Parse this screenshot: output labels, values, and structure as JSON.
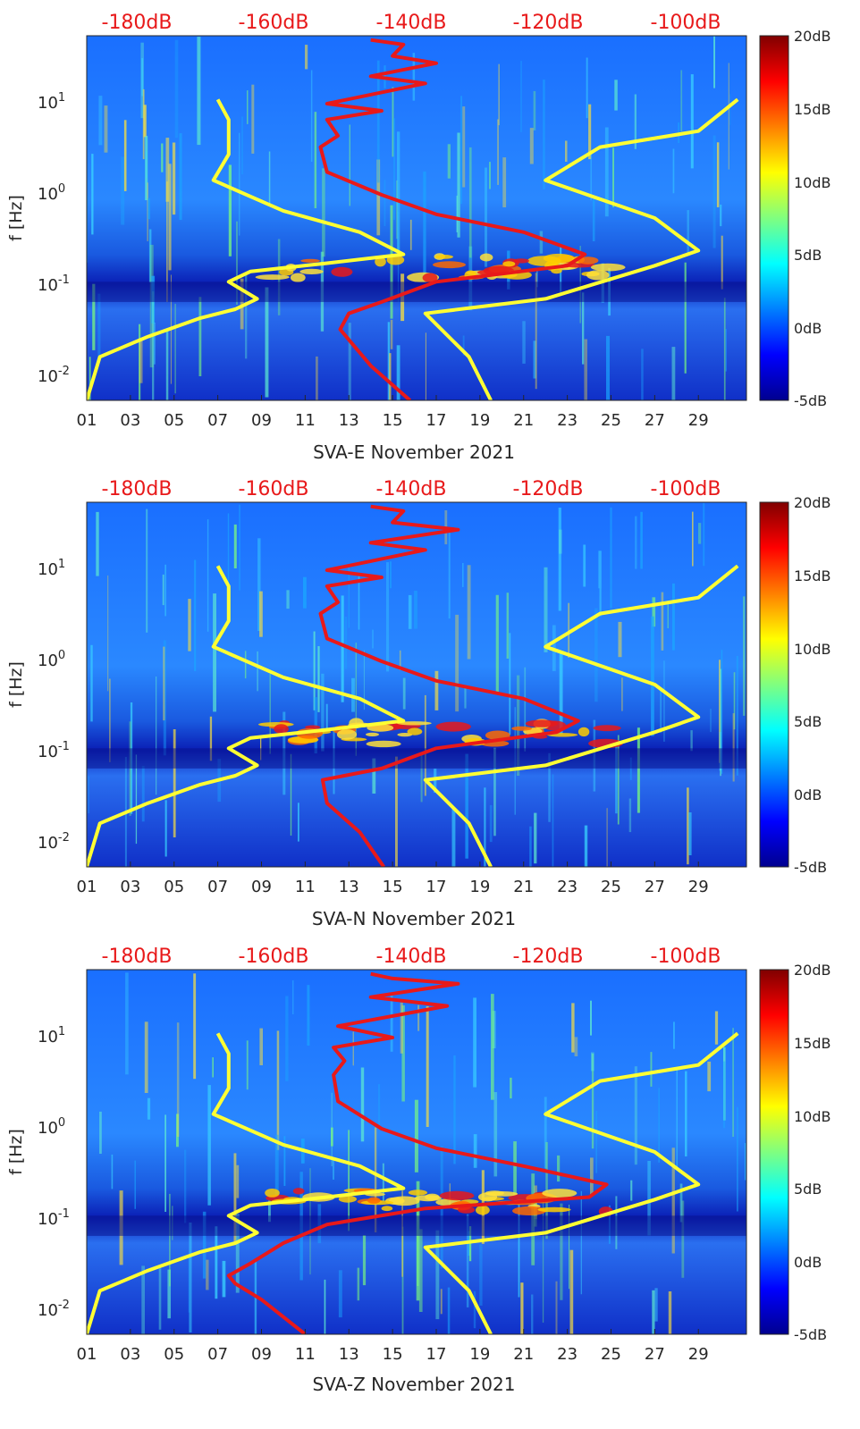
{
  "chart_data": [
    {
      "type": "heatmap",
      "xlabel": "SVA-E November 2021",
      "ylabel": "f [Hz]",
      "x_ticks": [
        "01",
        "03",
        "05",
        "07",
        "09",
        "11",
        "13",
        "15",
        "17",
        "19",
        "21",
        "23",
        "25",
        "27",
        "29"
      ],
      "y_ticks": [
        "10^-2",
        "10^-1",
        "10^0",
        "10^1"
      ],
      "y_scale": "log",
      "ylim": [
        0.005,
        50
      ],
      "top_labels": [
        "-180dB",
        "-160dB",
        "-140dB",
        "-120dB",
        "-100dB"
      ],
      "colorbar_ticks": [
        "20dB",
        "15dB",
        "10dB",
        "5dB",
        "0dB",
        "-5dB"
      ],
      "colorbar_range": [
        -5,
        20
      ],
      "colormap": "jet",
      "series": [
        {
          "color": "#ffff33",
          "x": [
            1.0,
            1.6,
            3.8,
            6.2,
            7.8,
            8.8,
            7.5,
            8.5,
            12.0,
            15.5,
            13.5,
            10.0,
            6.8,
            7.5,
            7.5,
            7.0
          ],
          "y": [
            0.005,
            0.015,
            0.025,
            0.04,
            0.05,
            0.065,
            0.1,
            0.13,
            0.16,
            0.2,
            0.35,
            0.6,
            1.3,
            2.5,
            6,
            10
          ]
        },
        {
          "color": "#e8191a",
          "x": [
            15.8,
            14.0,
            12.6,
            13.0,
            14.5,
            17.0,
            23.0,
            23.8,
            21.0,
            17.0,
            14.5,
            12.0,
            11.7,
            12.5,
            12.0,
            14.5,
            12.0,
            16.5,
            14.0,
            17.0,
            15.0,
            15.5,
            14.0
          ],
          "y": [
            0.005,
            0.012,
            0.03,
            0.045,
            0.06,
            0.1,
            0.15,
            0.2,
            0.35,
            0.55,
            0.9,
            1.6,
            3,
            4,
            6,
            7.5,
            9,
            15,
            18,
            25,
            30,
            40,
            45
          ]
        },
        {
          "color": "#ffff33",
          "x": [
            19.5,
            18.5,
            16.5,
            22.0,
            27.0,
            29.0,
            27.0,
            22.0,
            24.5,
            29.0,
            30.8
          ],
          "y": [
            0.005,
            0.015,
            0.045,
            0.065,
            0.15,
            0.22,
            0.5,
            1.3,
            3.0,
            4.5,
            10
          ]
        }
      ]
    },
    {
      "type": "heatmap",
      "xlabel": "SVA-N November 2021",
      "ylabel": "f [Hz]",
      "x_ticks": [
        "01",
        "03",
        "05",
        "07",
        "09",
        "11",
        "13",
        "15",
        "17",
        "19",
        "21",
        "23",
        "25",
        "27",
        "29"
      ],
      "y_ticks": [
        "10^-2",
        "10^-1",
        "10^0",
        "10^1"
      ],
      "y_scale": "log",
      "ylim": [
        0.005,
        50
      ],
      "top_labels": [
        "-180dB",
        "-160dB",
        "-140dB",
        "-120dB",
        "-100dB"
      ],
      "colorbar_ticks": [
        "20dB",
        "15dB",
        "10dB",
        "5dB",
        "0dB",
        "-5dB"
      ],
      "colorbar_range": [
        -5,
        20
      ],
      "colormap": "jet",
      "series": [
        {
          "color": "#ffff33",
          "x": [
            1.0,
            1.6,
            3.8,
            6.2,
            7.8,
            8.8,
            7.5,
            8.5,
            12.0,
            15.5,
            13.5,
            10.0,
            6.8,
            7.5,
            7.5,
            7.0
          ],
          "y": [
            0.005,
            0.015,
            0.025,
            0.04,
            0.05,
            0.065,
            0.1,
            0.13,
            0.16,
            0.2,
            0.35,
            0.6,
            1.3,
            2.5,
            6,
            10
          ]
        },
        {
          "color": "#e8191a",
          "x": [
            14.6,
            13.5,
            12.0,
            11.8,
            14.5,
            17.0,
            22.5,
            23.5,
            21.0,
            17.0,
            14.5,
            12.0,
            11.7,
            12.5,
            12.0,
            14.5,
            12.0,
            16.5,
            14.0,
            18.0,
            15.0,
            15.5,
            14.0
          ],
          "y": [
            0.005,
            0.012,
            0.025,
            0.045,
            0.06,
            0.1,
            0.15,
            0.2,
            0.35,
            0.55,
            0.9,
            1.6,
            3,
            4,
            6,
            7.5,
            9,
            15,
            18,
            25,
            30,
            40,
            45
          ]
        },
        {
          "color": "#ffff33",
          "x": [
            19.5,
            18.5,
            16.5,
            22.0,
            27.0,
            29.0,
            27.0,
            22.0,
            24.5,
            29.0,
            30.8
          ],
          "y": [
            0.005,
            0.015,
            0.045,
            0.065,
            0.15,
            0.22,
            0.5,
            1.3,
            3.0,
            4.5,
            10
          ]
        }
      ]
    },
    {
      "type": "heatmap",
      "xlabel": "SVA-Z November 2021",
      "ylabel": "f [Hz]",
      "x_ticks": [
        "01",
        "03",
        "05",
        "07",
        "09",
        "11",
        "13",
        "15",
        "17",
        "19",
        "21",
        "23",
        "25",
        "27",
        "29"
      ],
      "y_ticks": [
        "10^-2",
        "10^-1",
        "10^0",
        "10^1"
      ],
      "y_scale": "log",
      "ylim": [
        0.005,
        50
      ],
      "top_labels": [
        "-180dB",
        "-160dB",
        "-140dB",
        "-120dB",
        "-100dB"
      ],
      "colorbar_ticks": [
        "20dB",
        "15dB",
        "10dB",
        "5dB",
        "0dB",
        "-5dB"
      ],
      "colorbar_range": [
        -5,
        20
      ],
      "colormap": "jet",
      "series": [
        {
          "color": "#ffff33",
          "x": [
            1.0,
            1.6,
            3.8,
            6.2,
            7.8,
            8.8,
            7.5,
            8.5,
            12.0,
            15.5,
            13.5,
            10.0,
            6.8,
            7.5,
            7.5,
            7.0
          ],
          "y": [
            0.005,
            0.015,
            0.025,
            0.04,
            0.05,
            0.065,
            0.1,
            0.13,
            0.16,
            0.2,
            0.35,
            0.6,
            1.3,
            2.5,
            6,
            10
          ]
        },
        {
          "color": "#e8191a",
          "x": [
            11.0,
            9.0,
            7.8,
            7.5,
            8.5,
            10.0,
            12.0,
            16.5,
            24.0,
            24.8,
            21.0,
            17.0,
            14.5,
            12.5,
            12.3,
            12.8,
            12.3,
            15.0,
            12.5,
            17.5,
            14.0,
            18.0,
            15.0,
            14.0
          ],
          "y": [
            0.005,
            0.012,
            0.018,
            0.022,
            0.03,
            0.05,
            0.08,
            0.12,
            0.16,
            0.22,
            0.35,
            0.55,
            0.9,
            1.8,
            3.5,
            5,
            7,
            9,
            12,
            20,
            25,
            35,
            40,
            45
          ]
        },
        {
          "color": "#ffff33",
          "x": [
            19.5,
            18.5,
            16.5,
            22.0,
            27.0,
            29.0,
            27.0,
            22.0,
            24.5,
            29.0,
            30.8
          ],
          "y": [
            0.005,
            0.015,
            0.045,
            0.065,
            0.15,
            0.22,
            0.5,
            1.3,
            3.0,
            4.5,
            10
          ]
        }
      ]
    }
  ]
}
